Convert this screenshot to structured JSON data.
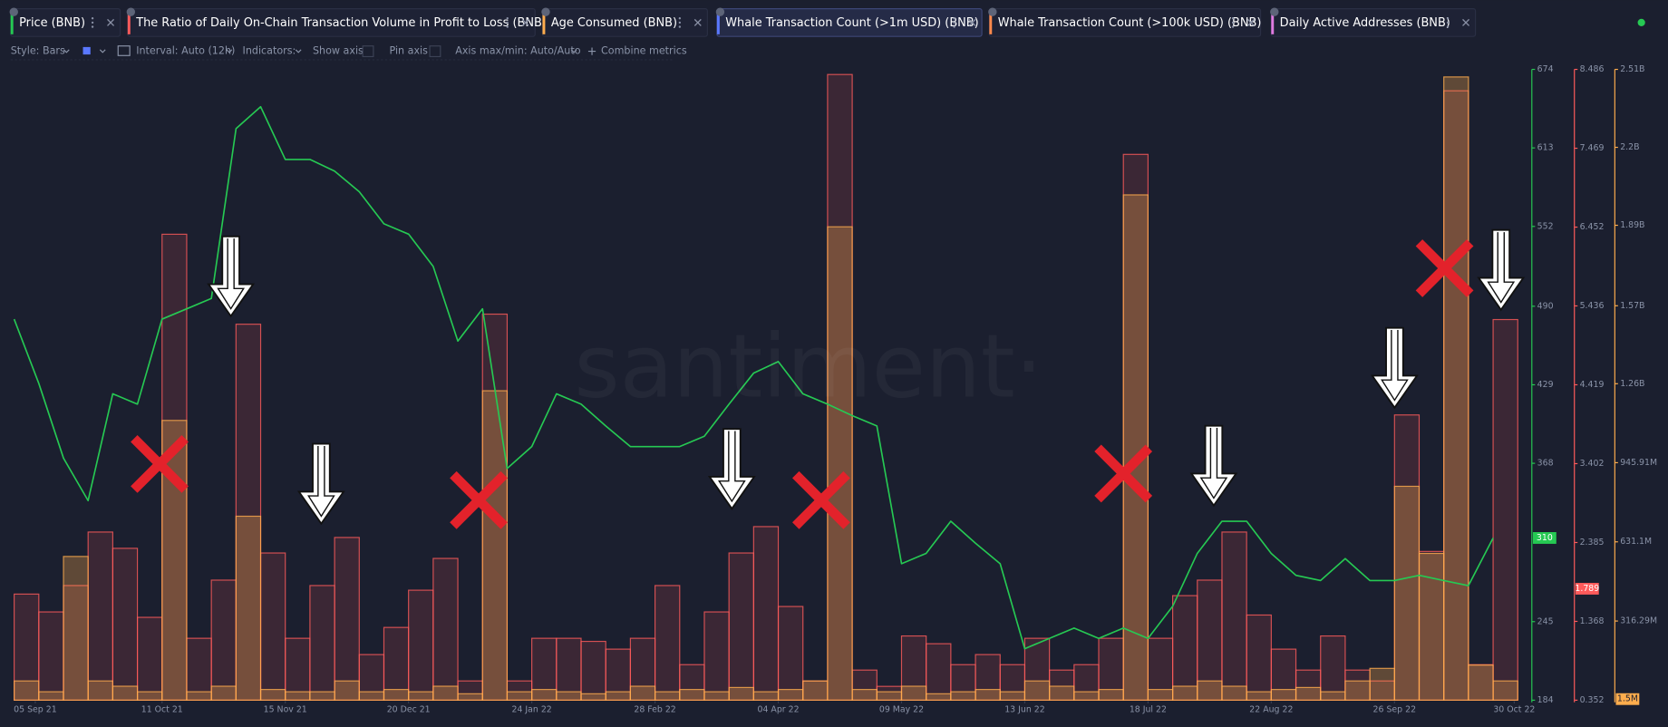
{
  "toolbar": [
    "Style: Bars",
    "Interval: Auto (12h)",
    "Indicators:",
    "Show axis",
    "Pin axis",
    "Axis max/min: Auto/Auto",
    "Combine metrics"
  ],
  "watermark": "santiment·",
  "chart_data": {
    "type": "combo",
    "x": [
      "2021-08-30",
      "2021-09-06",
      "2021-09-13",
      "2021-09-20",
      "2021-09-27",
      "2021-10-04",
      "2021-10-11",
      "2021-10-18",
      "2021-10-25",
      "2021-11-01",
      "2021-11-08",
      "2021-11-15",
      "2021-11-22",
      "2021-11-29",
      "2021-12-06",
      "2021-12-13",
      "2021-12-20",
      "2021-12-27",
      "2022-01-03",
      "2022-01-10",
      "2022-01-17",
      "2022-01-24",
      "2022-01-31",
      "2022-02-07",
      "2022-02-14",
      "2022-02-21",
      "2022-02-28",
      "2022-03-07",
      "2022-03-14",
      "2022-03-21",
      "2022-03-28",
      "2022-04-04",
      "2022-04-11",
      "2022-04-18",
      "2022-04-25",
      "2022-05-02",
      "2022-05-09",
      "2022-05-16",
      "2022-05-23",
      "2022-05-30",
      "2022-06-06",
      "2022-06-13",
      "2022-06-20",
      "2022-06-27",
      "2022-07-04",
      "2022-07-11",
      "2022-07-18",
      "2022-07-25",
      "2022-08-01",
      "2022-08-08",
      "2022-08-15",
      "2022-08-22",
      "2022-08-29",
      "2022-09-05",
      "2022-09-12",
      "2022-09-19",
      "2022-09-26",
      "2022-10-03",
      "2022-10-10",
      "2022-10-17",
      "2022-10-24"
    ],
    "xlim": [
      "2021-08-29",
      "2022-11-04"
    ],
    "xticks": [
      {
        "value": "2021-09-05",
        "label": "05 Sep 21"
      },
      {
        "value": "2021-10-11",
        "label": "11 Oct 21"
      },
      {
        "value": "2021-11-15",
        "label": "15 Nov 21"
      },
      {
        "value": "2021-12-20",
        "label": "20 Dec 21"
      },
      {
        "value": "2022-01-24",
        "label": "24 Jan 22"
      },
      {
        "value": "2022-02-28",
        "label": "28 Feb 22"
      },
      {
        "value": "2022-04-04",
        "label": "04 Apr 22"
      },
      {
        "value": "2022-05-09",
        "label": "09 May 22"
      },
      {
        "value": "2022-06-13",
        "label": "13 Jun 22"
      },
      {
        "value": "2022-07-18",
        "label": "18 Jul 22"
      },
      {
        "value": "2022-08-22",
        "label": "22 Aug 22"
      },
      {
        "value": "2022-09-26",
        "label": "26 Sep 22"
      },
      {
        "value": "2022-10-30",
        "label": "30 Oct 22"
      }
    ],
    "ylim": [
      184,
      674
    ],
    "yticks": [
      674,
      613,
      552,
      490,
      429,
      368,
      245,
      184
    ],
    "y2lim": [
      0.352,
      8.486
    ],
    "y2ticks": [
      8.486,
      7.469,
      6.452,
      5.436,
      4.419,
      3.402,
      2.385,
      1.368,
      0.352
    ],
    "y3lim": [
      1500000,
      2510000000
    ],
    "y3ticks": [
      {
        "value": 2510000000,
        "label": "2.51B"
      },
      {
        "value": 2200000000,
        "label": "2.2B"
      },
      {
        "value": 1890000000,
        "label": "1.89B"
      },
      {
        "value": 1570000000,
        "label": "1.57B"
      },
      {
        "value": 1260000000,
        "label": "1.26B"
      },
      {
        "value": 945910000,
        "label": "945.91M"
      },
      {
        "value": 631100000,
        "label": "631.1M"
      },
      {
        "value": 316290000,
        "label": "316.29M"
      }
    ],
    "series": [
      {
        "name": "Price (BNB)",
        "color": "#26c953",
        "type": "line",
        "axis": "y",
        "current": 310,
        "values": [
          480,
          430,
          372,
          339,
          422,
          414,
          480,
          488,
          496,
          628,
          645,
          604,
          604,
          595,
          579,
          554,
          546,
          521,
          463,
          488,
          364,
          381,
          422,
          414,
          397,
          381,
          381,
          381,
          389,
          414,
          438,
          447,
          422,
          414,
          405,
          397,
          290,
          298,
          323,
          306,
          290,
          224,
          232,
          240,
          232,
          240,
          232,
          257,
          298,
          323,
          323,
          298,
          281,
          277,
          294,
          277,
          277,
          281,
          277,
          273,
          310
        ]
      },
      {
        "name": "The Ratio of Daily On-Chain Transaction Volume in Profit to Loss (BNB)",
        "color": "#ff5b5b",
        "type": "bar",
        "axis": "y2",
        "current": 1.789,
        "values": [
          1.72,
          1.49,
          1.83,
          2.52,
          2.31,
          1.42,
          6.36,
          1.15,
          1.9,
          5.2,
          2.25,
          1.15,
          1.83,
          2.45,
          0.94,
          1.29,
          1.77,
          2.18,
          0.6,
          5.33,
          0.6,
          1.15,
          1.15,
          1.11,
          1.01,
          1.15,
          1.83,
          0.81,
          1.49,
          2.25,
          2.59,
          1.56,
          0.6,
          8.42,
          0.74,
          0.53,
          1.18,
          1.08,
          0.81,
          0.94,
          0.81,
          1.15,
          0.74,
          0.81,
          1.15,
          7.39,
          1.15,
          1.7,
          1.9,
          2.52,
          1.45,
          1.01,
          0.74,
          1.18,
          0.74,
          0.6,
          4.03,
          2.27,
          8.21,
          0.81,
          5.26
        ]
      },
      {
        "name": "Age Consumed (BNB)",
        "color": "#ffad4d",
        "type": "bar",
        "axis": "y3",
        "current": 1500000,
        "current_label": "1.5M",
        "values": [
          78000000,
          35000000,
          573000000,
          78000000,
          57000000,
          35000000,
          1114000000,
          35000000,
          57000000,
          733000000,
          44000000,
          35000000,
          35000000,
          78000000,
          35000000,
          44000000,
          35000000,
          57000000,
          27000000,
          1232000000,
          35000000,
          44000000,
          35000000,
          27000000,
          35000000,
          57000000,
          35000000,
          44000000,
          35000000,
          52000000,
          35000000,
          44000000,
          78000000,
          1884000000,
          44000000,
          35000000,
          57000000,
          27000000,
          35000000,
          44000000,
          35000000,
          78000000,
          57000000,
          35000000,
          44000000,
          2011000000,
          44000000,
          57000000,
          78000000,
          57000000,
          35000000,
          44000000,
          52000000,
          35000000,
          78000000,
          128000000,
          852000000,
          585000000,
          2480000000,
          141000000,
          78000000
        ]
      }
    ],
    "hidden_series": [
      {
        "name": "Whale Transaction Count (>1m USD) (BNB)",
        "color": "#5a78ff",
        "active": true
      },
      {
        "name": "Whale Transaction Count (>100k USD) (BNB)",
        "color": "#ff8a4c",
        "active": false
      },
      {
        "name": "Daily Active Addresses (BNB)",
        "color": "#e07ae0",
        "active": false
      }
    ]
  }
}
